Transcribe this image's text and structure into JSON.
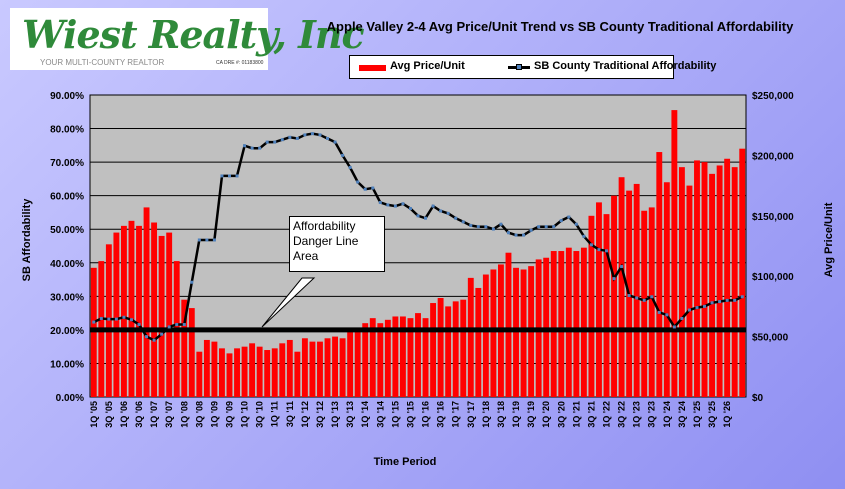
{
  "logo": {
    "name": "Wiest Realty, Inc",
    "tagline": "YOUR MULTI-COUNTY REALTOR",
    "license": "CA DRE #: 01183800"
  },
  "annotation": [
    "Affordability",
    "Danger Line",
    "Area"
  ],
  "colors": {
    "bar": "#ff0000",
    "line": "#000000",
    "marker": "#4f81bd",
    "plot_bg": "#c0c0c0",
    "danger_line": "#000000"
  },
  "chart_data": {
    "type": "bar",
    "title": "Apple Valley 2-4 Avg Price/Unit Trend vs SB County Traditional Affordability",
    "xlabel": "Time Period",
    "ylabel_left": "SB Affordability",
    "ylabel_right": "Avg Price/Unit",
    "legend_placement": "top",
    "grid": true,
    "ylim_left": [
      0,
      0.9
    ],
    "ylim_right": [
      0,
      250000
    ],
    "left_ticks": [
      "0.00%",
      "10.00%",
      "20.00%",
      "30.00%",
      "40.00%",
      "50.00%",
      "60.00%",
      "70.00%",
      "80.00%",
      "90.00%"
    ],
    "right_ticks": [
      "$0",
      "$50,000",
      "$100,000",
      "$150,000",
      "$200,000",
      "$250,000"
    ],
    "x_tick_labels": [
      "1Q '05",
      "3Q '05",
      "1Q '06",
      "3Q '06",
      "1Q '07",
      "3Q '07",
      "1Q '08",
      "3Q '08",
      "1Q '09",
      "3Q '09",
      "1Q '10",
      "3Q '10",
      "1Q '11",
      "3Q '11",
      "1Q '12",
      "3Q '12",
      "1Q '13",
      "3Q '13",
      "1Q '14",
      "3Q '14",
      "1Q '15",
      "3Q '15",
      "1Q '16",
      "3Q '16",
      "1Q '17",
      "3Q '17",
      "1Q '18",
      "3Q '18",
      "1Q '19",
      "3Q '19",
      "1Q '20",
      "3Q '20",
      "1Q '21",
      "3Q '21",
      "1Q '22",
      "3Q '22",
      "1Q '23",
      "3Q '23",
      "1Q '24",
      "3Q '24",
      "1Q '25",
      "3Q '25",
      "1Q '26"
    ],
    "danger_line_value": 0.2,
    "series": [
      {
        "name": "Avg Price/Unit",
        "axis": "left",
        "type": "bar",
        "values": [
          0.385,
          0.405,
          0.455,
          0.49,
          0.51,
          0.525,
          0.51,
          0.565,
          0.52,
          0.48,
          0.49,
          0.405,
          0.29,
          0.265,
          0.135,
          0.17,
          0.165,
          0.145,
          0.13,
          0.145,
          0.15,
          0.16,
          0.15,
          0.14,
          0.145,
          0.16,
          0.17,
          0.135,
          0.175,
          0.165,
          0.165,
          0.175,
          0.18,
          0.175,
          0.195,
          0.205,
          0.22,
          0.235,
          0.22,
          0.23,
          0.24,
          0.24,
          0.235,
          0.25,
          0.235,
          0.28,
          0.295,
          0.27,
          0.285,
          0.29,
          0.355,
          0.325,
          0.365,
          0.38,
          0.395,
          0.43,
          0.385,
          0.38,
          0.39,
          0.41,
          0.415,
          0.435,
          0.435,
          0.445,
          0.435,
          0.445,
          0.54,
          0.58,
          0.545,
          0.6,
          0.655,
          0.615,
          0.635,
          0.555,
          0.565,
          0.73,
          0.64,
          0.855,
          0.685,
          0.63,
          0.705,
          0.7,
          0.665,
          0.69,
          0.71,
          0.685,
          0.74
        ]
      },
      {
        "name": "SB County Traditional Affordability",
        "axis": "right",
        "type": "line",
        "values": [
          62000,
          65000,
          64500,
          64500,
          66000,
          64000,
          60000,
          50000,
          47000,
          52000,
          58000,
          60000,
          60000,
          95000,
          130000,
          130000,
          130000,
          183000,
          183000,
          183000,
          208000,
          206000,
          206000,
          211000,
          211000,
          213000,
          215000,
          214000,
          217000,
          218000,
          217000,
          214000,
          211000,
          200000,
          190000,
          178000,
          172000,
          173000,
          161000,
          159000,
          158000,
          160000,
          156000,
          150000,
          148000,
          158000,
          154000,
          152000,
          148000,
          145000,
          142000,
          141000,
          141000,
          139000,
          143000,
          136000,
          134000,
          134000,
          138000,
          141000,
          141000,
          141000,
          146000,
          149000,
          143000,
          133000,
          126000,
          122000,
          121000,
          98000,
          108000,
          84000,
          82000,
          80000,
          83000,
          70000,
          68000,
          58000,
          65000,
          72000,
          74000,
          75000,
          78000,
          79000,
          80000,
          80000,
          83000
        ]
      }
    ]
  }
}
